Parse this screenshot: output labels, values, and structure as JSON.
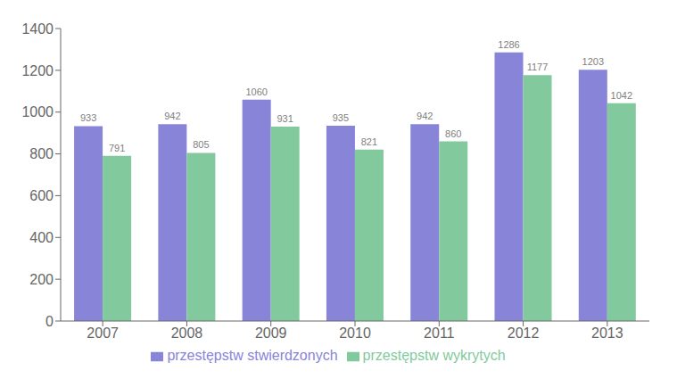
{
  "chart_data": {
    "type": "bar",
    "categories": [
      "2007",
      "2008",
      "2009",
      "2010",
      "2011",
      "2012",
      "2013"
    ],
    "series": [
      {
        "name": "przestępstw stwierdzonych",
        "color": "#8884d8",
        "values": [
          933,
          942,
          1060,
          935,
          942,
          1286,
          1203
        ]
      },
      {
        "name": "przestępstw wykrytych",
        "color": "#82ca9d",
        "values": [
          791,
          805,
          931,
          821,
          860,
          1177,
          1042
        ]
      }
    ],
    "ylim": [
      0,
      1400
    ],
    "yticks": [
      0,
      200,
      400,
      600,
      800,
      1000,
      1200,
      1400
    ],
    "grid": false,
    "legend": "bottom",
    "data_labels": true
  }
}
